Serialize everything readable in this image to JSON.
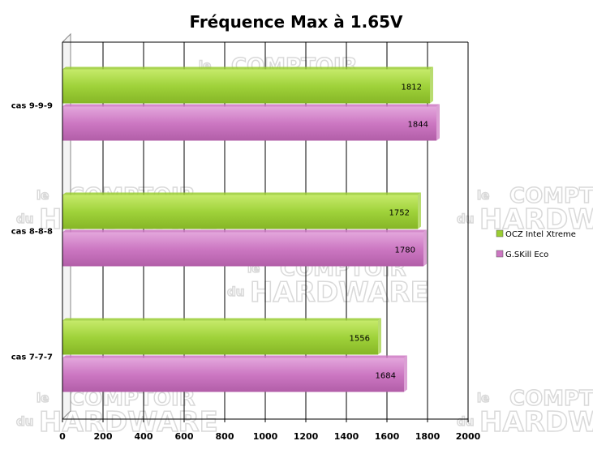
{
  "chart_data": {
    "type": "bar",
    "orientation": "horizontal",
    "title": "Fréquence Max à 1.65V",
    "categories": [
      "cas 9-9-9",
      "cas 8-8-8",
      "cas 7-7-7"
    ],
    "series": [
      {
        "name": "OCZ Intel Xtreme",
        "values": [
          1812,
          1752,
          1556
        ],
        "color": "#9acd32"
      },
      {
        "name": "G.SKill Eco",
        "values": [
          1844,
          1780,
          1684
        ],
        "color": "#cc77c2"
      }
    ],
    "xlim": [
      0,
      2000
    ],
    "xticks": [
      0,
      200,
      400,
      600,
      800,
      1000,
      1200,
      1400,
      1600,
      1800,
      2000
    ],
    "grid": true,
    "legend_position": "right",
    "watermark": {
      "line1a": "le",
      "line1b": "COMPTOIR",
      "line2a": "du",
      "line2b": "HARDWARE"
    }
  }
}
